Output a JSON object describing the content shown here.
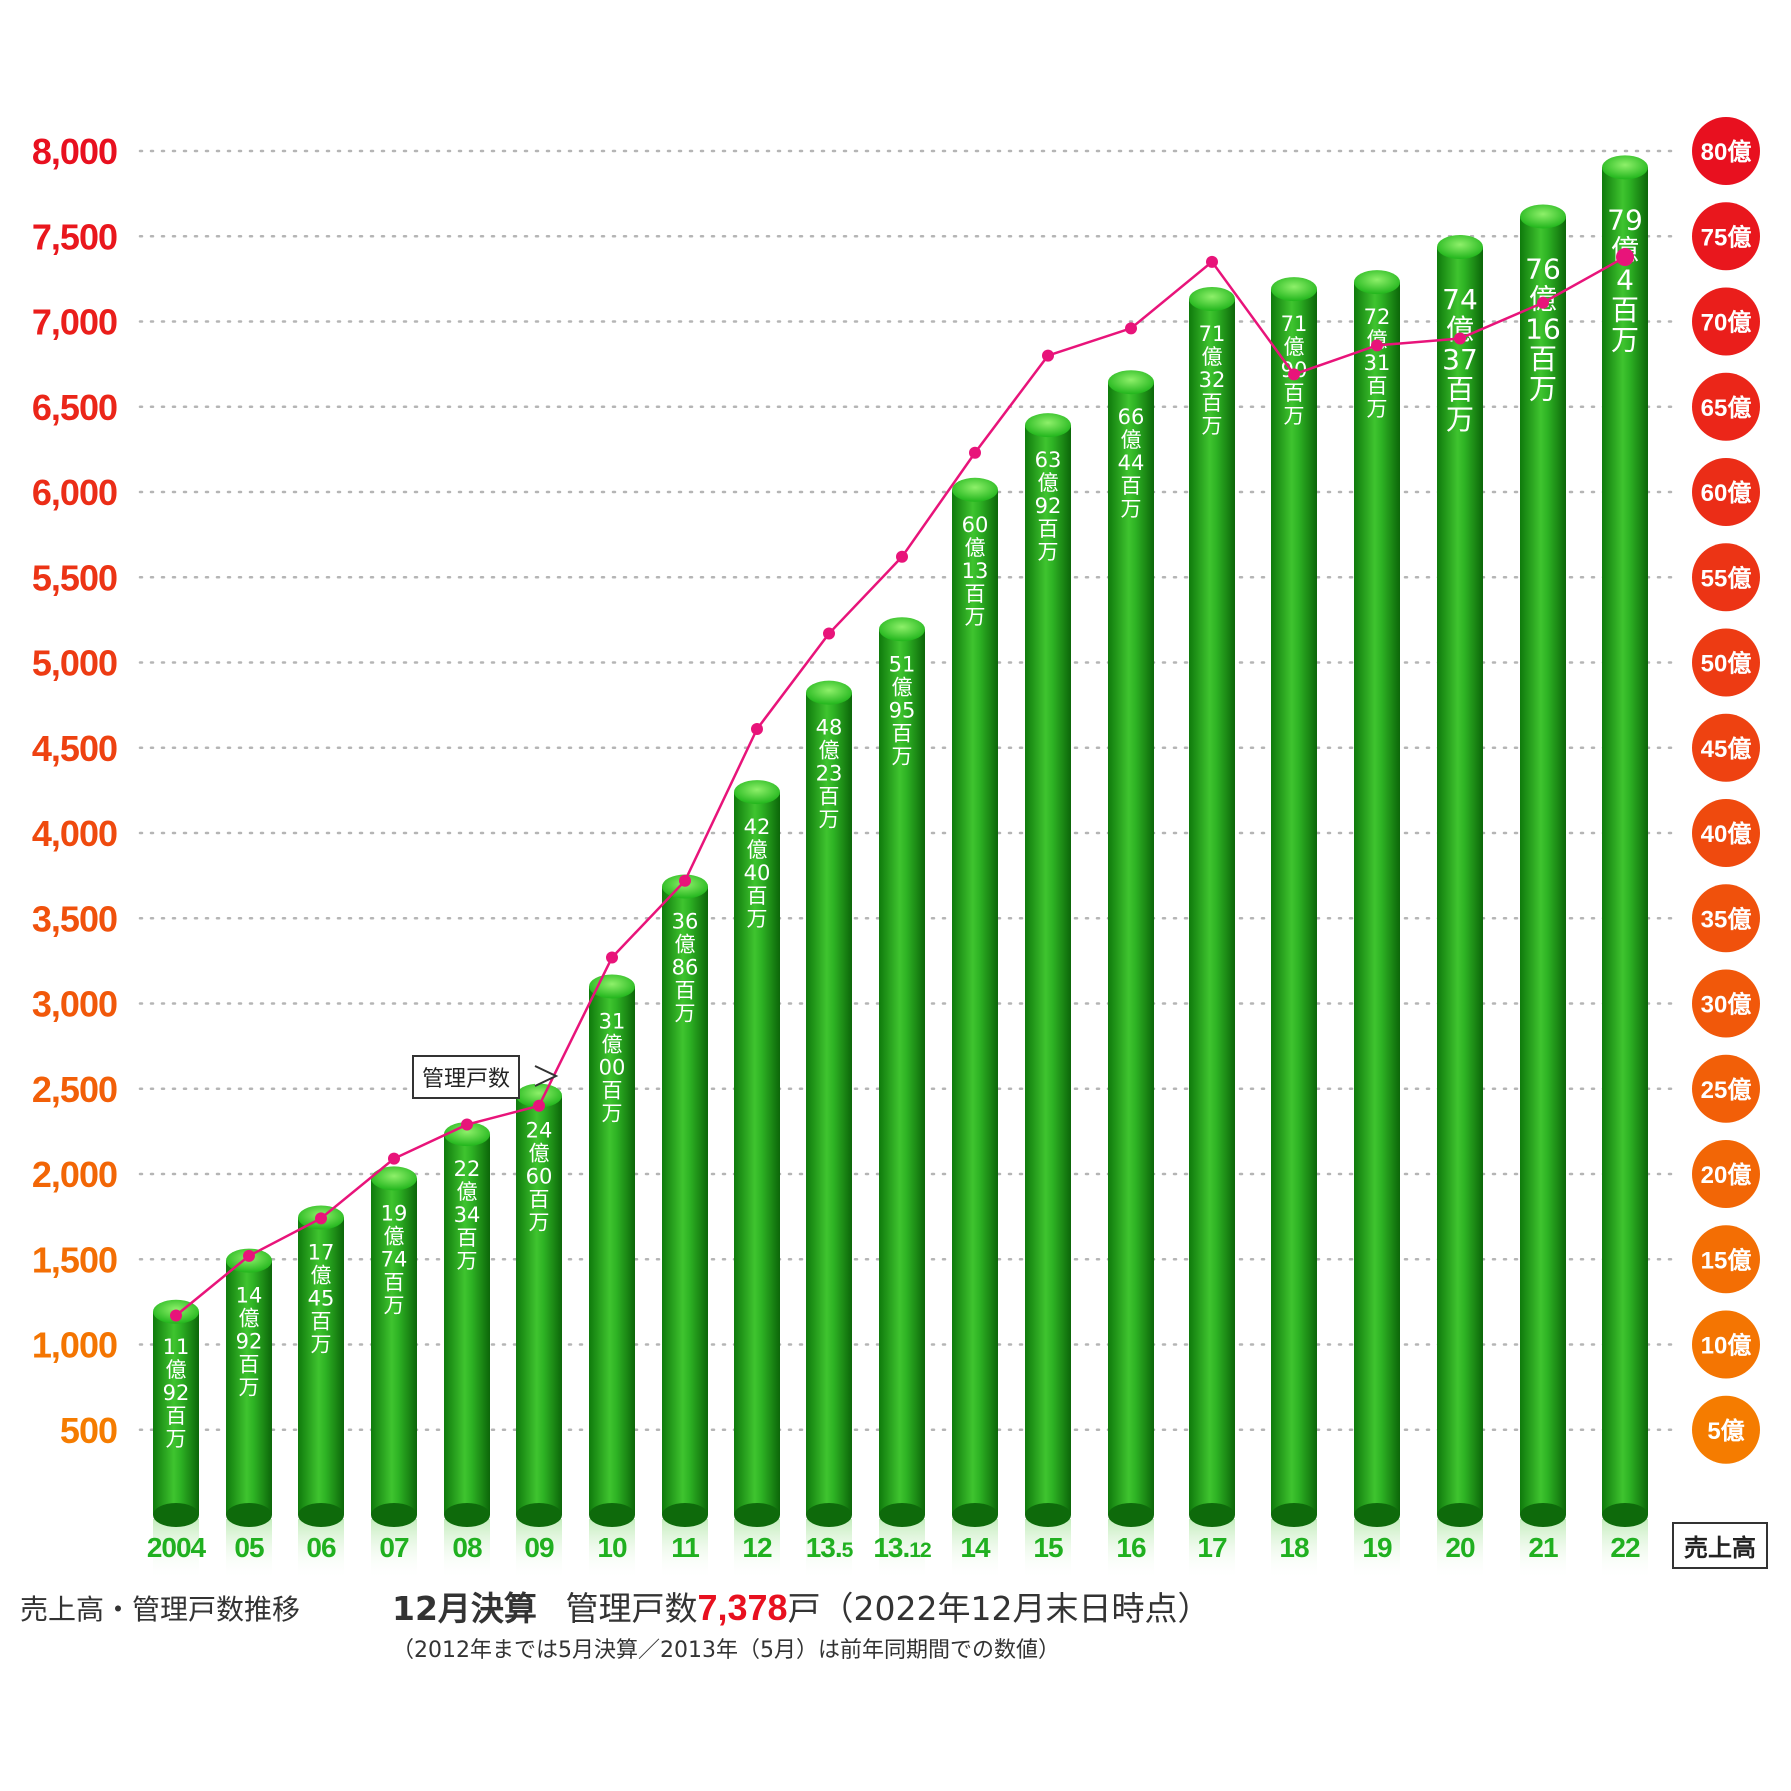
{
  "chart_data": {
    "type": "bar",
    "categories": [
      "2004",
      "05",
      "06",
      "07",
      "08",
      "09",
      "10",
      "11",
      "12",
      "13.5",
      "13.12",
      "14",
      "15",
      "16",
      "17",
      "18",
      "19",
      "20",
      "21",
      "22"
    ],
    "left_axis": {
      "ticks": [
        "8,000",
        "7,500",
        "7,000",
        "6,500",
        "6,000",
        "5,500",
        "5,000",
        "4,500",
        "4,000",
        "3,500",
        "3,000",
        "2,500",
        "2,000",
        "1,500",
        "1,000",
        "500"
      ],
      "tick_values": [
        8000,
        7500,
        7000,
        6500,
        6000,
        5500,
        5000,
        4500,
        4000,
        3500,
        3000,
        2500,
        2000,
        1500,
        1000,
        500
      ],
      "range": [
        0,
        8000
      ]
    },
    "right_axis": {
      "ticks": [
        "80億",
        "75億",
        "70億",
        "65億",
        "60億",
        "55億",
        "50億",
        "45億",
        "40億",
        "35億",
        "30億",
        "25億",
        "20億",
        "15億",
        "10億",
        "5億"
      ],
      "range_oku": [
        0,
        80
      ]
    },
    "grid": "dotted horizontal",
    "series": [
      {
        "name": "売上高",
        "type": "bar",
        "values_oku": [
          11.92,
          14.92,
          17.45,
          19.74,
          22.34,
          24.6,
          31.0,
          36.86,
          42.4,
          48.23,
          51.95,
          60.13,
          63.92,
          66.44,
          71.32,
          71.9,
          72.31,
          74.37,
          76.16,
          79.04
        ],
        "labels": [
          [
            "11",
            "億",
            "92",
            "百",
            "万"
          ],
          [
            "14",
            "億",
            "92",
            "百",
            "万"
          ],
          [
            "17",
            "億",
            "45",
            "百",
            "万"
          ],
          [
            "19",
            "億",
            "74",
            "百",
            "万"
          ],
          [
            "22",
            "億",
            "34",
            "百",
            "万"
          ],
          [
            "24",
            "億",
            "60",
            "百",
            "万"
          ],
          [
            "31",
            "億",
            "00",
            "百",
            "万"
          ],
          [
            "36",
            "億",
            "86",
            "百",
            "万"
          ],
          [
            "42",
            "億",
            "40",
            "百",
            "万"
          ],
          [
            "48",
            "億",
            "23",
            "百",
            "万"
          ],
          [
            "51",
            "億",
            "95",
            "百",
            "万"
          ],
          [
            "60",
            "億",
            "13",
            "百",
            "万"
          ],
          [
            "63",
            "億",
            "92",
            "百",
            "万"
          ],
          [
            "66",
            "億",
            "44",
            "百",
            "万"
          ],
          [
            "71",
            "億",
            "32",
            "百",
            "万"
          ],
          [
            "71",
            "億",
            "90",
            "百",
            "万"
          ],
          [
            "72",
            "億",
            "31",
            "百",
            "万"
          ],
          [
            "74",
            "億",
            "37",
            "百",
            "万"
          ],
          [
            "76",
            "億",
            "16",
            "百",
            "万"
          ],
          [
            "79",
            "億",
            "4",
            "百",
            "万"
          ]
        ]
      },
      {
        "name": "管理戸数",
        "type": "line",
        "values": [
          1170,
          1520,
          1740,
          2090,
          2290,
          2400,
          3270,
          3720,
          4610,
          5170,
          5620,
          6230,
          6800,
          6960,
          7350,
          6690,
          6860,
          6900,
          7110,
          7378
        ]
      }
    ]
  },
  "colors": {
    "bar_light": "#7ee05a",
    "bar_mid": "#22aa1e",
    "bar_dark": "#0f6e0c",
    "line": "#e8147a",
    "axis_top": "#e8101f",
    "axis_bottom": "#f57c00",
    "x_label": "#20b020"
  },
  "legend": {
    "count_label": "管理戸数",
    "sales_label": "売上高"
  },
  "footer": {
    "caption": "売上高・管理戸数推移",
    "settlement": "12月決算",
    "count_prefix": "管理戸数",
    "count_value": "7,378",
    "count_suffix": "戸（2022年12月末日時点）",
    "note": "（2012年までは5月決算／2013年（5月）は前年同期間での数値）"
  }
}
